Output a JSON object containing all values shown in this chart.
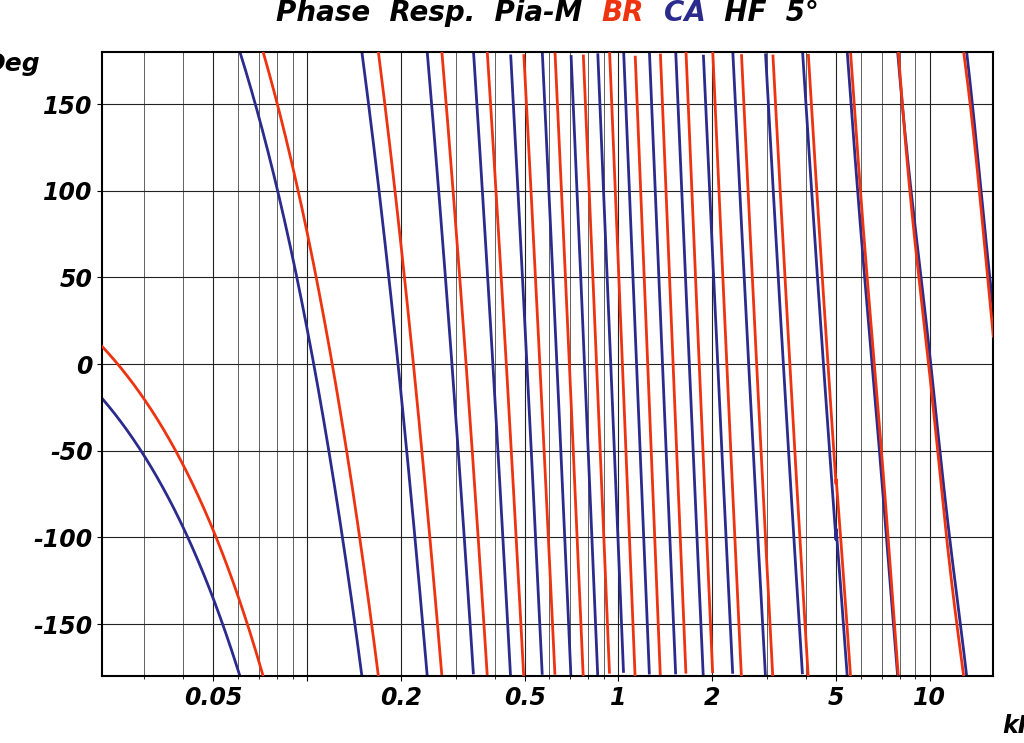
{
  "title_black1": "Phase  Resp.  Pia-M  ",
  "title_red": "BR",
  "title_black2": "  ",
  "title_blue": "CA",
  "title_black3": "  HF  5°",
  "ylabel": "Deg",
  "xlabel_unit": "kHz",
  "ylim": [
    -180,
    180
  ],
  "yticks": [
    -150,
    -100,
    -50,
    0,
    50,
    100,
    150
  ],
  "xmin": 0.022,
  "xmax": 16,
  "color_br": "#EE3311",
  "color_ca": "#2B2B8E",
  "bg_color": "#FFFFFF",
  "grid_color": "#222222",
  "linewidth": 2.0,
  "title_fontsize": 20,
  "tick_fontsize": 17
}
